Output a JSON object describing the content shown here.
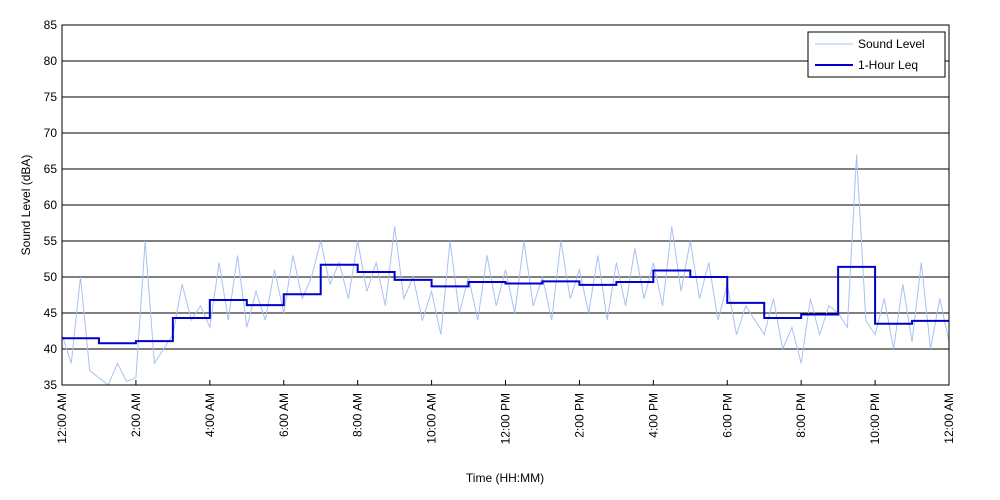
{
  "chart_data": {
    "type": "line",
    "xlabel": "Time (HH:MM)",
    "ylabel": "Sound Level (dBA)",
    "xlim": [
      0,
      24
    ],
    "xticks": [
      {
        "value": 0,
        "label": "12:00 AM"
      },
      {
        "value": 2,
        "label": "2:00 AM"
      },
      {
        "value": 4,
        "label": "4:00 AM"
      },
      {
        "value": 6,
        "label": "6:00 AM"
      },
      {
        "value": 8,
        "label": "8:00 AM"
      },
      {
        "value": 10,
        "label": "10:00 AM"
      },
      {
        "value": 12,
        "label": "12:00 PM"
      },
      {
        "value": 14,
        "label": "2:00 PM"
      },
      {
        "value": 16,
        "label": "4:00 PM"
      },
      {
        "value": 18,
        "label": "6:00 PM"
      },
      {
        "value": 20,
        "label": "8:00 PM"
      },
      {
        "value": 22,
        "label": "10:00 PM"
      },
      {
        "value": 24,
        "label": "12:00 AM"
      }
    ],
    "ylim": [
      35,
      85
    ],
    "yticks": [
      35,
      40,
      45,
      50,
      55,
      60,
      65,
      70,
      75,
      80,
      85
    ],
    "grid": true,
    "legend": "upper right",
    "series": [
      {
        "name": "Sound Level",
        "color": "#a9c1f2",
        "width": 1,
        "drawstyle": "default",
        "x": [
          0,
          0.25,
          0.5,
          0.75,
          1,
          1.25,
          1.5,
          1.75,
          2,
          2.25,
          2.5,
          2.75,
          3,
          3.25,
          3.5,
          3.75,
          4,
          4.25,
          4.5,
          4.75,
          5,
          5.25,
          5.5,
          5.75,
          6,
          6.25,
          6.5,
          6.75,
          7,
          7.25,
          7.5,
          7.75,
          8,
          8.25,
          8.5,
          8.75,
          9,
          9.25,
          9.5,
          9.75,
          10,
          10.25,
          10.5,
          10.75,
          11,
          11.25,
          11.5,
          11.75,
          12,
          12.25,
          12.5,
          12.75,
          13,
          13.25,
          13.5,
          13.75,
          14,
          14.25,
          14.5,
          14.75,
          15,
          15.25,
          15.5,
          15.75,
          16,
          16.25,
          16.5,
          16.75,
          17,
          17.25,
          17.5,
          17.75,
          18,
          18.25,
          18.5,
          18.75,
          19,
          19.25,
          19.5,
          19.75,
          20,
          20.25,
          20.5,
          20.75,
          21,
          21.25,
          21.5,
          21.75,
          22,
          22.25,
          22.5,
          22.75,
          23,
          23.25,
          23.5,
          23.75,
          24
        ],
        "values": [
          42,
          38,
          50,
          37,
          36,
          35,
          38,
          35.5,
          36,
          55,
          38,
          40,
          42,
          49,
          44,
          46,
          43,
          52,
          44,
          53,
          43,
          48,
          44,
          51,
          45,
          53,
          47,
          50,
          55,
          49,
          52,
          47,
          55,
          48,
          52,
          46,
          57,
          47,
          50,
          44,
          48,
          42,
          55,
          45,
          50,
          44,
          53,
          46,
          51,
          45,
          55,
          46,
          50,
          44,
          55,
          47,
          51,
          45,
          53,
          44,
          52,
          46,
          54,
          47,
          52,
          46,
          57,
          48,
          55,
          47,
          52,
          44,
          49,
          42,
          46,
          44,
          42,
          47,
          40,
          43,
          38,
          47,
          42,
          46,
          45,
          43,
          67,
          44,
          42,
          47,
          40,
          49,
          41,
          52,
          40,
          47,
          41
        ]
      },
      {
        "name": "1-Hour Leq",
        "color": "#0000cc",
        "width": 2,
        "drawstyle": "steps-post",
        "x": [
          0,
          1,
          2,
          3,
          4,
          5,
          6,
          7,
          8,
          9,
          10,
          11,
          12,
          13,
          14,
          15,
          16,
          17,
          18,
          19,
          20,
          21,
          22,
          23,
          24
        ],
        "values": [
          41.5,
          40.8,
          41.1,
          44.3,
          46.8,
          46.1,
          47.6,
          51.7,
          50.7,
          49.6,
          48.7,
          49.3,
          49.1,
          49.4,
          48.9,
          49.3,
          50.9,
          50.0,
          46.4,
          44.3,
          44.8,
          51.4,
          43.5,
          43.9,
          43.9
        ]
      }
    ]
  }
}
